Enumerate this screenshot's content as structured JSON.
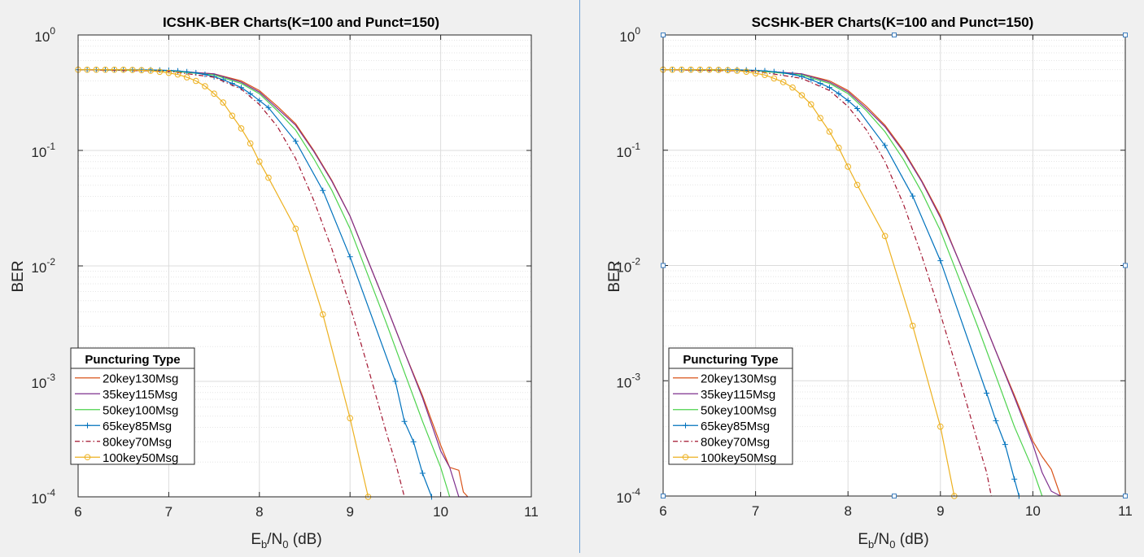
{
  "colors": {
    "figure_bg": "#f0f0f0",
    "axes_bg": "#ffffff",
    "s20": "#d95319",
    "s35": "#7e2f8e",
    "s50": "#77ac30",
    "s65": "#0072bd",
    "s80": "#a2142f",
    "s100": "#edb120"
  },
  "chart_data": [
    {
      "type": "line",
      "title": "ICSHK-BER Charts(K=100 and Punct=150)",
      "xlabel": "E_b/N_0 (dB)",
      "xlabel_parts": {
        "E": "E",
        "b": "b",
        "slash_N": "/N",
        "zero": "0",
        "db": " (dB)"
      },
      "ylabel": "BER",
      "yscale": "log",
      "xlim": [
        6,
        11
      ],
      "ylim": [
        0.0001,
        1
      ],
      "xticks": [
        "6",
        "7",
        "8",
        "9",
        "10",
        "11"
      ],
      "yticks": [
        {
          "base": "10",
          "exp": "0"
        },
        {
          "base": "10",
          "exp": "-1"
        },
        {
          "base": "10",
          "exp": "-2"
        },
        {
          "base": "10",
          "exp": "-3"
        },
        {
          "base": "10",
          "exp": "-4"
        }
      ],
      "grid": true,
      "legend": {
        "title": "Puncturing Type",
        "position": "bottom-left"
      },
      "series": [
        {
          "name": "20key130Msg",
          "color": "#d95319",
          "marker": "none",
          "dash": "none",
          "x": [
            6,
            7,
            7.5,
            7.8,
            8.0,
            8.2,
            8.4,
            8.6,
            8.8,
            9.0,
            9.2,
            9.4,
            9.6,
            9.8,
            10.0,
            10.1,
            10.2,
            10.25,
            10.3
          ],
          "y": [
            0.5,
            0.492,
            0.46,
            0.4,
            0.33,
            0.24,
            0.17,
            0.1,
            0.055,
            0.027,
            0.011,
            0.0045,
            0.0018,
            0.00075,
            0.00028,
            0.00018,
            0.00017,
            0.00011,
            0.0001
          ]
        },
        {
          "name": "35key115Msg",
          "color": "#7e2f8e",
          "marker": "none",
          "dash": "none",
          "x": [
            6,
            7,
            7.5,
            7.8,
            8.0,
            8.2,
            8.4,
            8.6,
            8.8,
            9.0,
            9.2,
            9.4,
            9.6,
            9.8,
            10.0,
            10.1,
            10.2,
            10.3
          ],
          "y": [
            0.5,
            0.492,
            0.46,
            0.39,
            0.32,
            0.23,
            0.165,
            0.098,
            0.054,
            0.027,
            0.011,
            0.0045,
            0.0018,
            0.00072,
            0.00025,
            0.00018,
            0.0001,
            0.0001
          ]
        },
        {
          "name": "50key100Msg",
          "color": "#4dd34d",
          "marker": "none",
          "dash": "none",
          "x": [
            6,
            7,
            7.5,
            7.8,
            8.0,
            8.2,
            8.4,
            8.6,
            8.8,
            9.0,
            9.2,
            9.4,
            9.6,
            9.8,
            10.0,
            10.1
          ],
          "y": [
            0.5,
            0.49,
            0.45,
            0.38,
            0.31,
            0.22,
            0.15,
            0.085,
            0.045,
            0.021,
            0.0082,
            0.0032,
            0.0012,
            0.00045,
            0.00018,
            0.0001
          ]
        },
        {
          "name": "65key85Msg",
          "color": "#0072bd",
          "marker": "plus",
          "dash": "none",
          "x": [
            6.0,
            6.1,
            6.2,
            6.3,
            6.4,
            6.5,
            6.6,
            6.7,
            6.8,
            6.9,
            7.0,
            7.1,
            7.2,
            7.3,
            7.4,
            7.5,
            7.6,
            7.7,
            7.8,
            7.9,
            8.0,
            8.1,
            8.4,
            8.7,
            9.0,
            9.5,
            9.6,
            9.7,
            9.8,
            9.9
          ],
          "y": [
            0.5,
            0.5,
            0.5,
            0.5,
            0.5,
            0.5,
            0.5,
            0.499,
            0.498,
            0.496,
            0.493,
            0.488,
            0.48,
            0.47,
            0.455,
            0.435,
            0.41,
            0.38,
            0.35,
            0.31,
            0.27,
            0.235,
            0.12,
            0.045,
            0.012,
            0.001,
            0.00045,
            0.0003,
            0.00016,
            0.0001
          ]
        },
        {
          "name": "80key70Msg",
          "color": "#a2142f",
          "marker": "none",
          "dash": "dashdot",
          "x": [
            6,
            7,
            7.5,
            7.8,
            8.0,
            8.2,
            8.4,
            8.6,
            8.8,
            9.0,
            9.2,
            9.4,
            9.5,
            9.6
          ],
          "y": [
            0.5,
            0.485,
            0.43,
            0.34,
            0.25,
            0.16,
            0.085,
            0.037,
            0.014,
            0.0045,
            0.0013,
            0.00036,
            0.0002,
            0.0001
          ]
        },
        {
          "name": "100key50Msg",
          "color": "#edb120",
          "marker": "circle",
          "dash": "none",
          "x": [
            6.0,
            6.1,
            6.2,
            6.3,
            6.4,
            6.5,
            6.6,
            6.7,
            6.8,
            6.9,
            7.0,
            7.1,
            7.2,
            7.3,
            7.4,
            7.5,
            7.6,
            7.7,
            7.8,
            7.9,
            8.0,
            8.1,
            8.4,
            8.7,
            9.0,
            9.2
          ],
          "y": [
            0.5,
            0.5,
            0.5,
            0.5,
            0.5,
            0.5,
            0.498,
            0.495,
            0.49,
            0.48,
            0.47,
            0.455,
            0.43,
            0.4,
            0.36,
            0.31,
            0.26,
            0.2,
            0.155,
            0.115,
            0.08,
            0.058,
            0.021,
            0.0038,
            0.00048,
            0.0001
          ]
        }
      ]
    },
    {
      "type": "line",
      "title": "SCSHK-BER Charts(K=100 and Punct=150)",
      "xlabel": "E_b/N_0 (dB)",
      "xlabel_parts": {
        "E": "E",
        "b": "b",
        "slash_N": "/N",
        "zero": "0",
        "db": " (dB)"
      },
      "ylabel": "BER",
      "yscale": "log",
      "xlim": [
        6,
        11
      ],
      "ylim": [
        0.0001,
        1
      ],
      "xticks": [
        "6",
        "7",
        "8",
        "9",
        "10",
        "11"
      ],
      "yticks": [
        {
          "base": "10",
          "exp": "0"
        },
        {
          "base": "10",
          "exp": "-1"
        },
        {
          "base": "10",
          "exp": "-2"
        },
        {
          "base": "10",
          "exp": "-3"
        },
        {
          "base": "10",
          "exp": "-4"
        }
      ],
      "grid": true,
      "legend": {
        "title": "Puncturing Type",
        "position": "bottom-left"
      },
      "series": [
        {
          "name": "20key130Msg",
          "color": "#d95319",
          "marker": "none",
          "dash": "none",
          "x": [
            6,
            7,
            7.5,
            7.8,
            8.0,
            8.2,
            8.4,
            8.6,
            8.8,
            9.0,
            9.2,
            9.4,
            9.6,
            9.8,
            10.0,
            10.1,
            10.2,
            10.3
          ],
          "y": [
            0.5,
            0.492,
            0.46,
            0.4,
            0.33,
            0.24,
            0.165,
            0.1,
            0.054,
            0.027,
            0.011,
            0.0045,
            0.0018,
            0.00075,
            0.0003,
            0.00022,
            0.00017,
            0.0001
          ]
        },
        {
          "name": "35key115Msg",
          "color": "#7e2f8e",
          "marker": "none",
          "dash": "none",
          "x": [
            6,
            7,
            7.5,
            7.8,
            8.0,
            8.2,
            8.4,
            8.6,
            8.8,
            9.0,
            9.2,
            9.4,
            9.6,
            9.8,
            10.0,
            10.1,
            10.2,
            10.3
          ],
          "y": [
            0.5,
            0.492,
            0.46,
            0.39,
            0.32,
            0.23,
            0.16,
            0.097,
            0.053,
            0.026,
            0.011,
            0.0045,
            0.0018,
            0.00072,
            0.00028,
            0.00016,
            0.00011,
            0.0001
          ]
        },
        {
          "name": "50key100Msg",
          "color": "#4dd34d",
          "marker": "none",
          "dash": "none",
          "x": [
            6,
            7,
            7.5,
            7.8,
            8.0,
            8.2,
            8.4,
            8.6,
            8.8,
            9.0,
            9.2,
            9.4,
            9.6,
            9.8,
            10.0,
            10.1
          ],
          "y": [
            0.5,
            0.49,
            0.45,
            0.38,
            0.31,
            0.22,
            0.145,
            0.083,
            0.043,
            0.02,
            0.0078,
            0.003,
            0.0011,
            0.0004,
            0.00017,
            0.0001
          ]
        },
        {
          "name": "65key85Msg",
          "color": "#0072bd",
          "marker": "plus",
          "dash": "none",
          "x": [
            6.0,
            6.1,
            6.2,
            6.3,
            6.4,
            6.5,
            6.6,
            6.7,
            6.8,
            6.9,
            7.0,
            7.1,
            7.2,
            7.3,
            7.4,
            7.5,
            7.6,
            7.7,
            7.8,
            7.9,
            8.0,
            8.1,
            8.4,
            8.7,
            9.0,
            9.5,
            9.6,
            9.7,
            9.8,
            9.85
          ],
          "y": [
            0.5,
            0.5,
            0.5,
            0.5,
            0.5,
            0.5,
            0.5,
            0.499,
            0.498,
            0.496,
            0.493,
            0.488,
            0.48,
            0.47,
            0.455,
            0.435,
            0.41,
            0.38,
            0.35,
            0.31,
            0.27,
            0.23,
            0.11,
            0.04,
            0.011,
            0.00078,
            0.00045,
            0.00028,
            0.00014,
            0.0001
          ]
        },
        {
          "name": "80key70Msg",
          "color": "#a2142f",
          "marker": "none",
          "dash": "dashdot",
          "x": [
            6,
            7,
            7.5,
            7.8,
            8.0,
            8.2,
            8.4,
            8.6,
            8.8,
            9.0,
            9.2,
            9.4,
            9.5,
            9.55
          ],
          "y": [
            0.5,
            0.485,
            0.42,
            0.33,
            0.24,
            0.15,
            0.08,
            0.034,
            0.012,
            0.0038,
            0.0011,
            0.0003,
            0.00016,
            0.0001
          ]
        },
        {
          "name": "100key50Msg",
          "color": "#edb120",
          "marker": "circle",
          "dash": "none",
          "x": [
            6.0,
            6.1,
            6.2,
            6.3,
            6.4,
            6.5,
            6.6,
            6.7,
            6.8,
            6.9,
            7.0,
            7.1,
            7.2,
            7.3,
            7.4,
            7.5,
            7.6,
            7.7,
            7.8,
            7.9,
            8.0,
            8.1,
            8.4,
            8.7,
            9.0,
            9.15
          ],
          "y": [
            0.5,
            0.5,
            0.5,
            0.5,
            0.5,
            0.5,
            0.498,
            0.495,
            0.49,
            0.48,
            0.465,
            0.45,
            0.42,
            0.39,
            0.35,
            0.3,
            0.25,
            0.19,
            0.145,
            0.105,
            0.072,
            0.05,
            0.018,
            0.003,
            0.0004,
            0.0001
          ]
        }
      ]
    }
  ]
}
